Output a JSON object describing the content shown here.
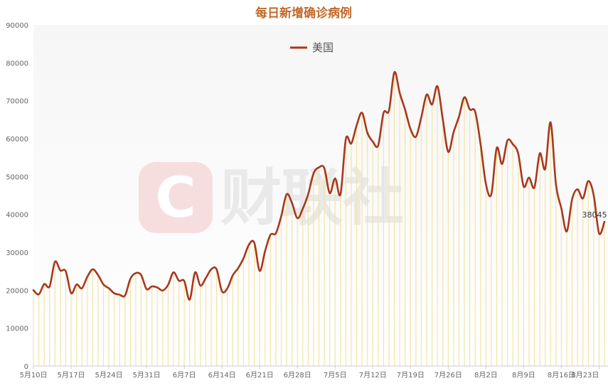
{
  "chart_data": {
    "type": "line",
    "title": "每日新增确诊病例",
    "legend": {
      "placement": "top-center",
      "entries": [
        "美国"
      ]
    },
    "watermark": "财联社",
    "grid": false,
    "ylim": [
      0,
      90000
    ],
    "y_ticks": [
      0,
      10000,
      20000,
      30000,
      40000,
      50000,
      60000,
      70000,
      80000,
      90000
    ],
    "x_ticks": [
      "5月10日",
      "5月17日",
      "5月24日",
      "5月31日",
      "6月7日",
      "6月14日",
      "6月21日",
      "6月28日",
      "7月5日",
      "7月12日",
      "7月19日",
      "7月26日",
      "8月2日",
      "8月9日",
      "8月16日",
      "8月23日"
    ],
    "end_label": "38045",
    "colors": {
      "line": "#a8381c",
      "bars": "#f5e3a3",
      "title": "#c26a2a"
    },
    "series": [
      {
        "name": "美国",
        "values": [
          20000,
          18900,
          21600,
          21000,
          27500,
          25200,
          25000,
          19200,
          21500,
          20500,
          23500,
          25500,
          24000,
          21500,
          20500,
          19200,
          18800,
          18600,
          23000,
          24500,
          24000,
          20300,
          21000,
          20700,
          19900,
          21400,
          24700,
          22500,
          22400,
          17500,
          24700,
          21200,
          23200,
          25500,
          25500,
          19700,
          20500,
          23900,
          25800,
          28400,
          32000,
          32500,
          25100,
          30300,
          34600,
          35000,
          39500,
          45300,
          43000,
          39000,
          41500,
          45300,
          50800,
          52400,
          52200,
          45600,
          49500,
          45300,
          59900,
          58700,
          63500,
          66800,
          61500,
          59200,
          58200,
          66800,
          67400,
          77500,
          72000,
          67600,
          62500,
          60500,
          65600,
          71600,
          69000,
          73800,
          65000,
          56500,
          61700,
          65800,
          70900,
          67700,
          67100,
          58600,
          48000,
          45300,
          57500,
          53300,
          59500,
          58500,
          56000,
          47400,
          49700,
          47100,
          56100,
          52000,
          64300,
          47900,
          41600,
          35500,
          44000,
          46600,
          44200,
          48800,
          45100,
          35000,
          38045
        ]
      }
    ]
  }
}
